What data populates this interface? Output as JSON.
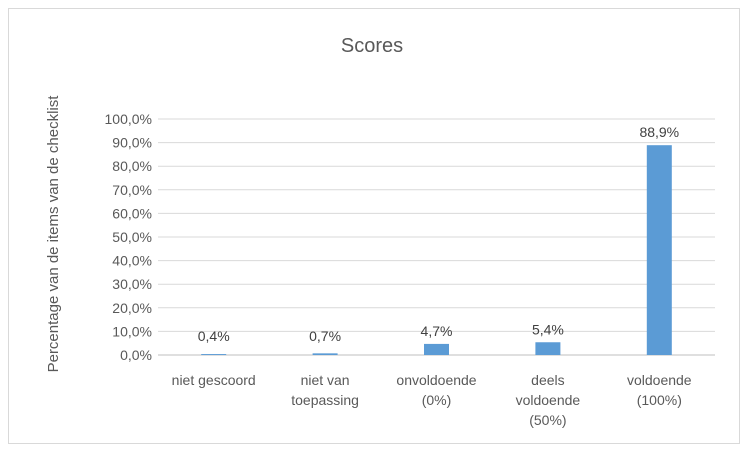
{
  "chart_data": {
    "type": "bar",
    "title": "Scores",
    "xlabel": "",
    "ylabel": "Percentage van de items van de checklist",
    "ylim": [
      0,
      100
    ],
    "yticks": [
      "0,0%",
      "10,0%",
      "20,0%",
      "30,0%",
      "40,0%",
      "50,0%",
      "60,0%",
      "70,0%",
      "80,0%",
      "90,0%",
      "100,0%"
    ],
    "categories": [
      [
        "niet gescoord"
      ],
      [
        "niet van",
        "toepassing"
      ],
      [
        "onvoldoende",
        "(0%)"
      ],
      [
        "deels",
        "voldoende",
        "(50%)"
      ],
      [
        "voldoende",
        "(100%)"
      ]
    ],
    "values": [
      0.4,
      0.7,
      4.7,
      5.4,
      88.9
    ],
    "data_labels": [
      "0,4%",
      "0,7%",
      "4,7%",
      "5,4%",
      "88,9%"
    ],
    "bar_color": "#5b9bd5",
    "grid": true,
    "legend": "none"
  }
}
